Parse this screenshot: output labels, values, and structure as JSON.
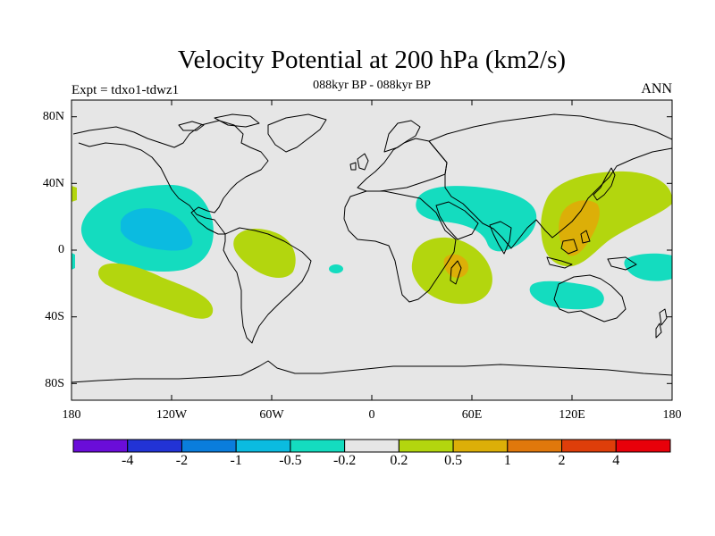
{
  "title": "Velocity Potential at 200 hPa (km2/s)",
  "subtitle": "088kyr BP - 088kyr BP",
  "left_label": "Expt = tdxo1-tdwz1",
  "right_label": "ANN",
  "lat_ticks": [
    "80N",
    "40N",
    "0",
    "40S",
    "80S"
  ],
  "lon_ticks": [
    "180",
    "120W",
    "60W",
    "0",
    "60E",
    "120E",
    "180"
  ],
  "colorbar": {
    "colors": [
      "#6a0dd9",
      "#2233d6",
      "#0a7ddc",
      "#0bbbe0",
      "#14dcbf",
      "#e6e6e6",
      "#b3d60e",
      "#dcaf08",
      "#e0780c",
      "#de3e0a",
      "#e8000a"
    ],
    "labels": [
      "-4",
      "-2",
      "-1",
      "-0.5",
      "-0.2",
      "0.2",
      "0.5",
      "1",
      "2",
      "4"
    ]
  },
  "map": {
    "ocean_color": "#e6e6e6",
    "land_outline": "#000000"
  }
}
